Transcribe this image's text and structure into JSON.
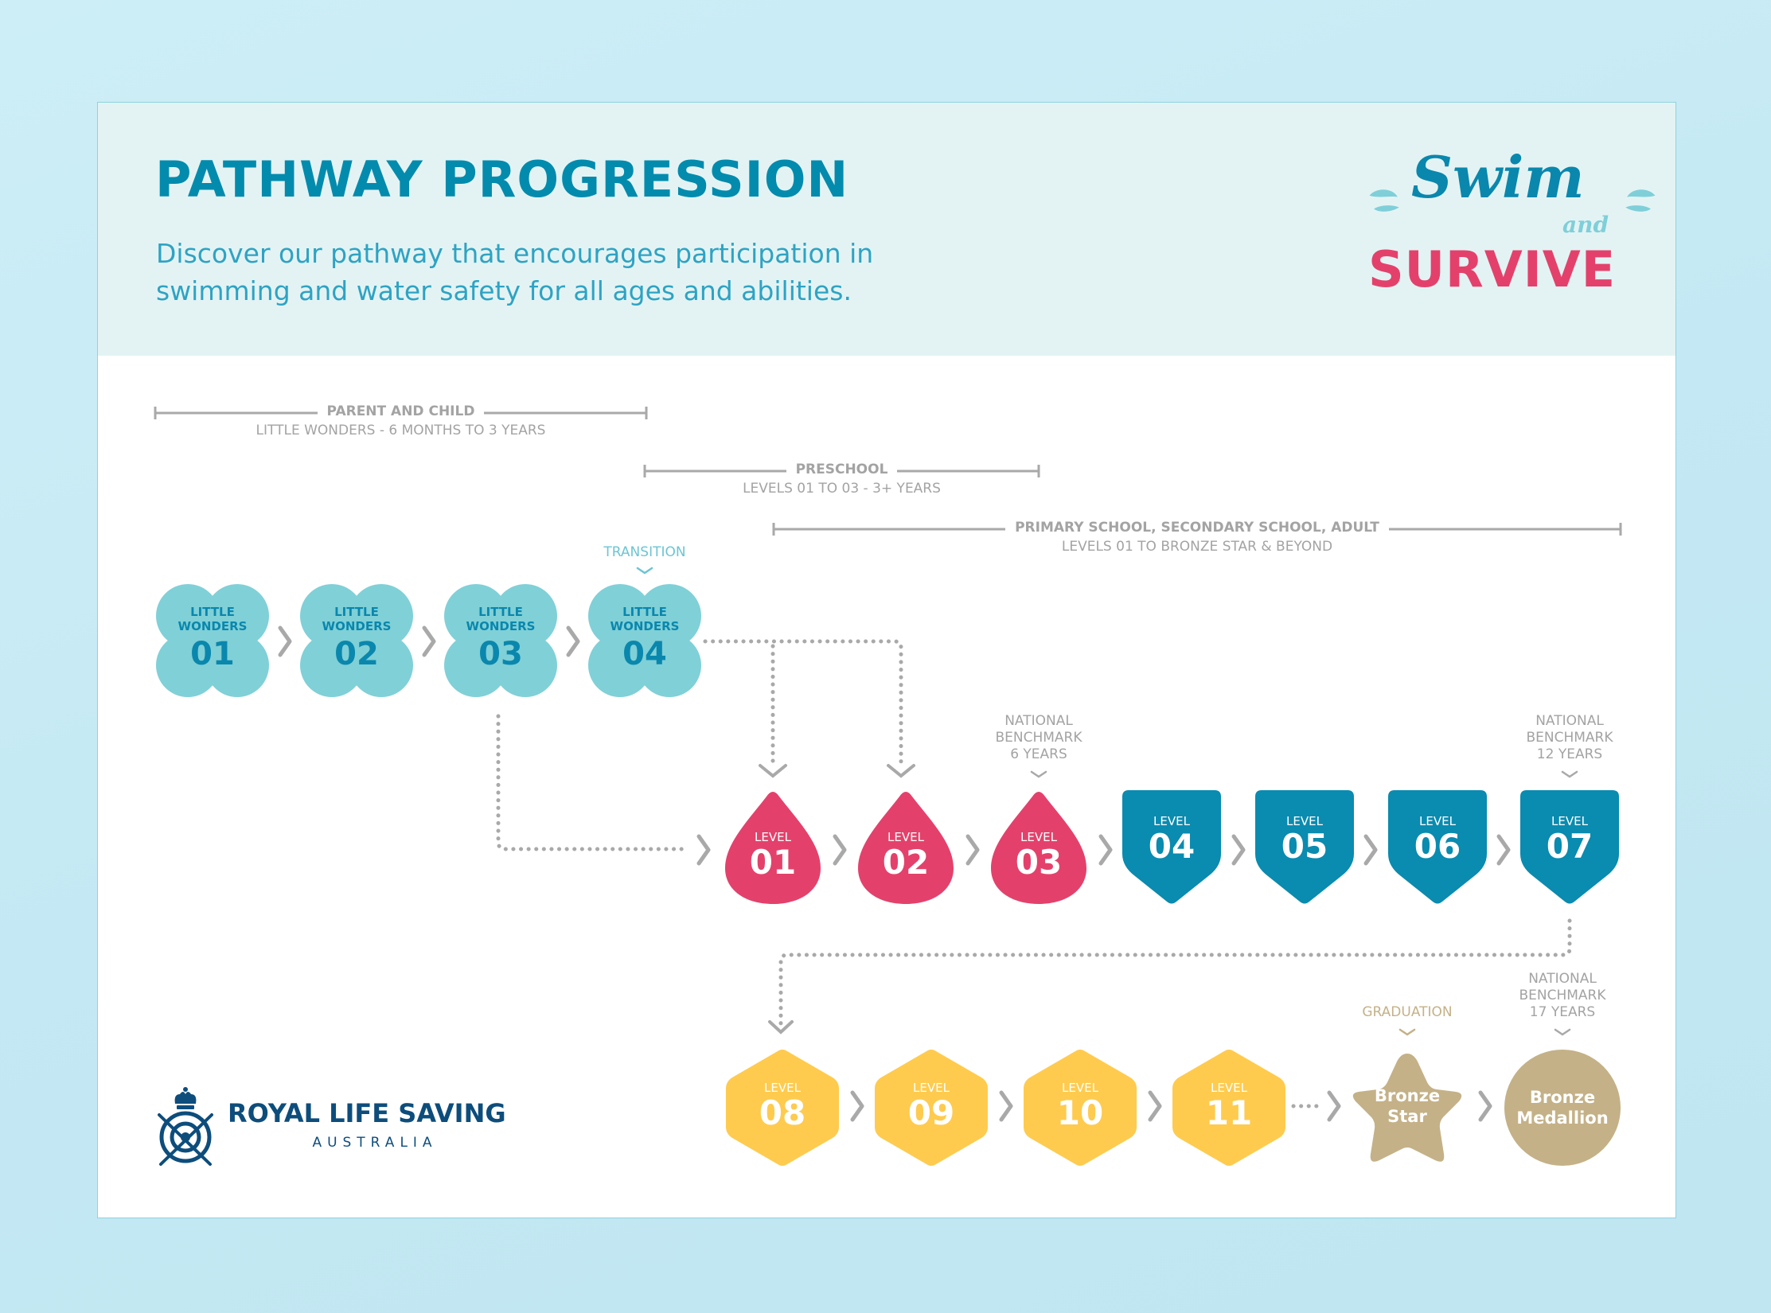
{
  "header": {
    "title": "PATHWAY PROGRESSION",
    "subtitle": "Discover our pathway that encourages participation in swimming and water safety for all ages and abilities."
  },
  "brand_logo": {
    "swim": "Swim",
    "and": "and",
    "survive": "SURVIVE"
  },
  "footer_logo": {
    "name": "ROYAL LIFE SAVING",
    "country": "AUSTRALIA"
  },
  "brackets": [
    {
      "title": "PARENT AND CHILD",
      "subtitle": "LITTLE WONDERS - 6 MONTHS TO 3 YEARS"
    },
    {
      "title": "PRESCHOOL",
      "subtitle": "LEVELS 01 TO 03 - 3+ YEARS"
    },
    {
      "title": "PRIMARY SCHOOL, SECONDARY SCHOOL, ADULT",
      "subtitle": "LEVELS 01 TO BRONZE STAR & BEYOND"
    }
  ],
  "little_wonders": [
    {
      "label": "LITTLE WONDERS",
      "number": "01"
    },
    {
      "label": "LITTLE WONDERS",
      "number": "02"
    },
    {
      "label": "LITTLE WONDERS",
      "number": "03"
    },
    {
      "label": "LITTLE WONDERS",
      "number": "04"
    }
  ],
  "levels_row": [
    {
      "label": "LEVEL",
      "number": "01",
      "shape": "drop"
    },
    {
      "label": "LEVEL",
      "number": "02",
      "shape": "drop"
    },
    {
      "label": "LEVEL",
      "number": "03",
      "shape": "drop"
    },
    {
      "label": "LEVEL",
      "number": "04",
      "shape": "shield"
    },
    {
      "label": "LEVEL",
      "number": "05",
      "shape": "shield"
    },
    {
      "label": "LEVEL",
      "number": "06",
      "shape": "shield"
    },
    {
      "label": "LEVEL",
      "number": "07",
      "shape": "shield"
    }
  ],
  "bottom_row": [
    {
      "label": "LEVEL",
      "number": "08"
    },
    {
      "label": "LEVEL",
      "number": "09"
    },
    {
      "label": "LEVEL",
      "number": "10"
    },
    {
      "label": "LEVEL",
      "number": "11"
    }
  ],
  "awards": {
    "star": {
      "line1": "Bronze",
      "line2": "Star"
    },
    "medallion": {
      "line1": "Bronze",
      "line2": "Medallion"
    }
  },
  "notes": {
    "transition": "TRANSITION",
    "benchmark_6": [
      "NATIONAL",
      "BENCHMARK",
      "6 YEARS"
    ],
    "benchmark_12": [
      "NATIONAL",
      "BENCHMARK",
      "12 YEARS"
    ],
    "graduation": "GRADUATION",
    "benchmark_17": [
      "NATIONAL",
      "BENCHMARK",
      "17 YEARS"
    ]
  },
  "colors": {
    "title": "#028bad",
    "subtitle": "#2ea3c3",
    "little_wonders": "#80d0d7",
    "little_wonders_text": "#0a87ad",
    "preschool_drop": "#e3416b",
    "shield": "#0a8bb0",
    "hexagon": "#fecb4e",
    "bronze": "#c4b187",
    "connector": "#a9a9a9",
    "rls_navy": "#0d4d7c"
  }
}
